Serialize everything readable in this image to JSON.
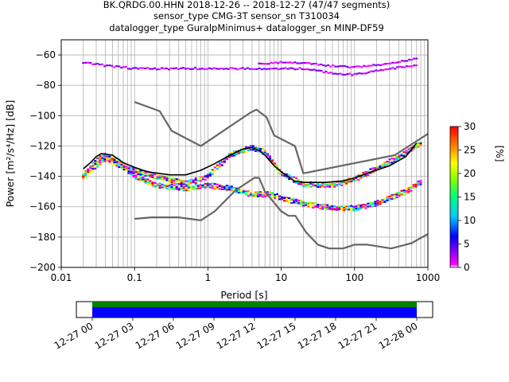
{
  "chart_data": {
    "type": "heatmap",
    "title_lines": [
      "BK.QRDG.00.HHN   2018-12-26 -- 2018-12-27  (47/47 segments)",
      "sensor_type CMG-3T sensor_sn T310034",
      "datalogger_type GuralpMinimus+ datalogger_sn MINP-DF59"
    ],
    "xlabel": "Period [s]",
    "ylabel": "Power [m²/s⁴/Hz] [dB]",
    "x_scale": "log",
    "xlim": [
      0.01,
      1000
    ],
    "ylim": [
      -200,
      -50
    ],
    "x_ticks": [
      {
        "value": 0.01,
        "label": "0.01"
      },
      {
        "value": 0.1,
        "label": "0.1"
      },
      {
        "value": 1,
        "label": "1"
      },
      {
        "value": 10,
        "label": "10"
      },
      {
        "value": 100,
        "label": "100"
      },
      {
        "value": 1000,
        "label": "1000"
      }
    ],
    "y_ticks": [
      -60,
      -80,
      -100,
      -120,
      -140,
      -160,
      -180,
      -200
    ],
    "y_tick_labels": [
      "−60",
      "−80",
      "−100",
      "−120",
      "−140",
      "−160",
      "−180",
      "−200"
    ],
    "grid": true,
    "colorbar": {
      "label": "[%]",
      "range": [
        0,
        30
      ],
      "ticks": [
        0,
        5,
        10,
        15,
        20,
        25,
        30
      ],
      "colormap": "pqlx"
    },
    "series": [
      {
        "name": "",
        "role": "noise-model-high",
        "color": "#666666",
        "points": [
          [
            0.1,
            -91
          ],
          [
            0.22,
            -97
          ],
          [
            0.32,
            -110
          ],
          [
            0.8,
            -120
          ],
          [
            3.8,
            -98
          ],
          [
            4.6,
            -96
          ],
          [
            6.3,
            -101
          ],
          [
            8,
            -113
          ],
          [
            15.4,
            -120
          ],
          [
            20,
            -138
          ],
          [
            354.8,
            -126
          ],
          [
            1000,
            -112
          ]
        ]
      },
      {
        "name": "",
        "role": "noise-model-low",
        "color": "#666666",
        "points": [
          [
            0.1,
            -168
          ],
          [
            0.17,
            -167
          ],
          [
            0.4,
            -167
          ],
          [
            0.8,
            -169
          ],
          [
            1.24,
            -163
          ],
          [
            2.4,
            -149
          ],
          [
            4.3,
            -141
          ],
          [
            5,
            -141
          ],
          [
            6,
            -150
          ],
          [
            10,
            -163
          ],
          [
            12.6,
            -166
          ],
          [
            15.6,
            -166
          ],
          [
            21.9,
            -177
          ],
          [
            31.6,
            -185
          ],
          [
            45,
            -187.5
          ],
          [
            70,
            -187.5
          ],
          [
            100,
            -185
          ],
          [
            150,
            -185
          ],
          [
            316,
            -187.5
          ],
          [
            600,
            -184
          ],
          [
            1000,
            -178
          ]
        ]
      },
      {
        "name": "",
        "role": "mean",
        "color": "#000000",
        "points": [
          [
            0.02,
            -135
          ],
          [
            0.025,
            -131
          ],
          [
            0.03,
            -127
          ],
          [
            0.035,
            -125
          ],
          [
            0.05,
            -126
          ],
          [
            0.07,
            -131
          ],
          [
            0.1,
            -134
          ],
          [
            0.15,
            -137
          ],
          [
            0.3,
            -139
          ],
          [
            0.5,
            -139
          ],
          [
            0.8,
            -136
          ],
          [
            1.2,
            -132
          ],
          [
            2,
            -126
          ],
          [
            3,
            -122
          ],
          [
            4,
            -121
          ],
          [
            5,
            -123
          ],
          [
            6,
            -126
          ],
          [
            8,
            -133
          ],
          [
            10,
            -137
          ],
          [
            15,
            -143
          ],
          [
            20,
            -144
          ],
          [
            40,
            -144
          ],
          [
            70,
            -143
          ],
          [
            100,
            -141
          ],
          [
            150,
            -138
          ],
          [
            300,
            -133
          ],
          [
            500,
            -127
          ],
          [
            700,
            -118
          ]
        ]
      }
    ],
    "density_bands": [
      {
        "name": "",
        "points": [
          [
            0.02,
            -140
          ],
          [
            0.03,
            -130
          ],
          [
            0.04,
            -126
          ],
          [
            0.06,
            -130
          ],
          [
            0.1,
            -140
          ],
          [
            0.2,
            -146
          ],
          [
            0.5,
            -148
          ],
          [
            1,
            -146
          ],
          [
            2,
            -148
          ],
          [
            4,
            -152
          ],
          [
            7,
            -152
          ],
          [
            10,
            -154
          ],
          [
            20,
            -158
          ],
          [
            50,
            -161
          ],
          [
            100,
            -161
          ],
          [
            200,
            -158
          ],
          [
            500,
            -150
          ],
          [
            800,
            -144
          ]
        ]
      },
      {
        "name": "",
        "points": [
          [
            0.02,
            -140
          ],
          [
            0.04,
            -128
          ],
          [
            0.08,
            -135
          ],
          [
            0.2,
            -140
          ],
          [
            0.5,
            -145
          ],
          [
            1,
            -140
          ],
          [
            2,
            -126
          ],
          [
            4,
            -121
          ],
          [
            6,
            -124
          ],
          [
            10,
            -138
          ],
          [
            20,
            -145
          ],
          [
            50,
            -146
          ],
          [
            100,
            -142
          ],
          [
            200,
            -135
          ],
          [
            500,
            -125
          ],
          [
            800,
            -118
          ]
        ]
      },
      {
        "name": "",
        "points": [
          [
            0.02,
            -65
          ],
          [
            0.04,
            -67
          ],
          [
            0.1,
            -69
          ],
          [
            0.5,
            -69
          ],
          [
            1,
            -69
          ],
          [
            3,
            -69
          ],
          [
            10,
            -69
          ],
          [
            20,
            -69
          ],
          [
            50,
            -72
          ],
          [
            100,
            -73
          ],
          [
            300,
            -69
          ],
          [
            700,
            -67
          ]
        ]
      },
      {
        "name": "",
        "points": [
          [
            5,
            -66
          ],
          [
            10,
            -65
          ],
          [
            20,
            -65
          ],
          [
            40,
            -67
          ],
          [
            100,
            -68
          ],
          [
            300,
            -66
          ],
          [
            700,
            -62
          ]
        ]
      }
    ]
  },
  "time_axis": {
    "ticks": [
      "12-27 00",
      "12-27 03",
      "12-27 06",
      "12-27 09",
      "12-27 12",
      "12-27 15",
      "12-27 18",
      "12-27 21",
      "12-28 00"
    ],
    "data_coverage_color": "#008000",
    "psd_coverage_color": "#0000ff"
  }
}
